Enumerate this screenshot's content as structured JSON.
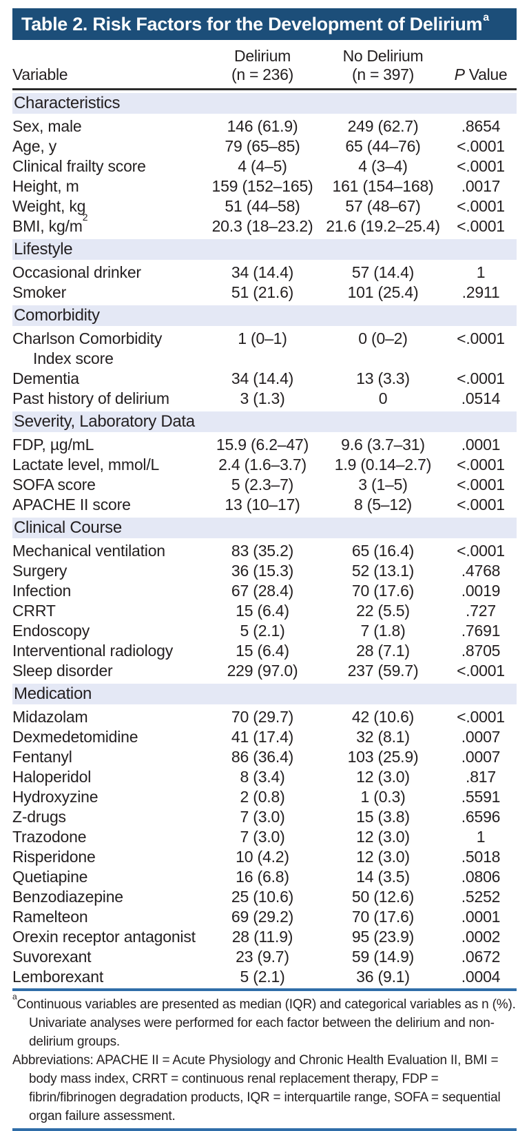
{
  "title": {
    "text": "Table 2. Risk Factors for the Development of Delirium",
    "footnote_marker": "a"
  },
  "columns": {
    "variable": "Variable",
    "delirium_line1": "Delirium",
    "delirium_line2": "(n = 236)",
    "no_delirium_line1": "No Delirium",
    "no_delirium_line2": "(n = 397)",
    "p_italic": "P",
    "p_rest": " Value"
  },
  "sections": [
    {
      "header": "Characteristics",
      "rows": [
        {
          "label": "Sex, male",
          "delirium": "146 (61.9)",
          "no_delirium": "249 (62.7)",
          "p": ".8654"
        },
        {
          "label": "Age, y",
          "delirium": "79 (65–85)",
          "no_delirium": "65 (44–76)",
          "p": "<.0001"
        },
        {
          "label": "Clinical frailty score",
          "delirium": "4 (4–5)",
          "no_delirium": "4 (3–4)",
          "p": "<.0001"
        },
        {
          "label": "Height, m",
          "delirium": "159 (152–165)",
          "no_delirium": "161 (154–168)",
          "p": ".0017"
        },
        {
          "label": "Weight, kg",
          "delirium": "51 (44–58)",
          "no_delirium": "57 (48–67)",
          "p": "<.0001"
        },
        {
          "label": "BMI, kg/m",
          "label_sup": "2",
          "delirium": "20.3 (18–23.2)",
          "no_delirium": "21.6 (19.2–25.4)",
          "p": "<.0001"
        }
      ]
    },
    {
      "header": "Lifestyle",
      "rows": [
        {
          "label": "Occasional drinker",
          "delirium": "34 (14.4)",
          "no_delirium": "57 (14.4)",
          "p": "1"
        },
        {
          "label": "Smoker",
          "delirium": "51 (21.6)",
          "no_delirium": "101 (25.4)",
          "p": ".2911"
        }
      ]
    },
    {
      "header": "Comorbidity",
      "rows": [
        {
          "label": "Charlson Comorbidity",
          "label2": "Index score",
          "delirium": "1 (0–1)",
          "no_delirium": "0 (0–2)",
          "p": "<.0001"
        },
        {
          "label": "Dementia",
          "delirium": "34 (14.4)",
          "no_delirium": "13 (3.3)",
          "p": "<.0001"
        },
        {
          "label": "Past history of delirium",
          "delirium": "3 (1.3)",
          "no_delirium": "0",
          "p": ".0514"
        }
      ]
    },
    {
      "header": "Severity, Laboratory Data",
      "rows": [
        {
          "label": "FDP, µg/mL",
          "delirium": "15.9 (6.2–47)",
          "no_delirium": "9.6 (3.7–31)",
          "p": ".0001"
        },
        {
          "label": "Lactate level, mmol/L",
          "delirium": "2.4 (1.6–3.7)",
          "no_delirium": "1.9 (0.14–2.7)",
          "p": "<.0001"
        },
        {
          "label": "SOFA score",
          "delirium": "5 (2.3–7)",
          "no_delirium": "3 (1–5)",
          "p": "<.0001"
        },
        {
          "label": "APACHE II score",
          "delirium": "13 (10–17)",
          "no_delirium": "8 (5–12)",
          "p": "<.0001"
        }
      ]
    },
    {
      "header": "Clinical Course",
      "rows": [
        {
          "label": "Mechanical ventilation",
          "delirium": "83 (35.2)",
          "no_delirium": "65 (16.4)",
          "p": "<.0001"
        },
        {
          "label": "Surgery",
          "delirium": "36 (15.3)",
          "no_delirium": "52 (13.1)",
          "p": ".4768"
        },
        {
          "label": "Infection",
          "delirium": "67 (28.4)",
          "no_delirium": "70 (17.6)",
          "p": ".0019"
        },
        {
          "label": "CRRT",
          "delirium": "15 (6.4)",
          "no_delirium": "22 (5.5)",
          "p": ".727"
        },
        {
          "label": "Endoscopy",
          "delirium": "5 (2.1)",
          "no_delirium": "7 (1.8)",
          "p": ".7691"
        },
        {
          "label": "Interventional radiology",
          "delirium": "15 (6.4)",
          "no_delirium": "28 (7.1)",
          "p": ".8705"
        },
        {
          "label": "Sleep disorder",
          "delirium": "229 (97.0)",
          "no_delirium": "237 (59.7)",
          "p": "<.0001"
        }
      ]
    },
    {
      "header": "Medication",
      "rows": [
        {
          "label": "Midazolam",
          "delirium": "70 (29.7)",
          "no_delirium": "42 (10.6)",
          "p": "<.0001"
        },
        {
          "label": "Dexmedetomidine",
          "delirium": "41 (17.4)",
          "no_delirium": "32 (8.1)",
          "p": ".0007"
        },
        {
          "label": "Fentanyl",
          "delirium": "86 (36.4)",
          "no_delirium": "103 (25.9)",
          "p": ".0007"
        },
        {
          "label": "Haloperidol",
          "delirium": "8 (3.4)",
          "no_delirium": "12 (3.0)",
          "p": ".817"
        },
        {
          "label": "Hydroxyzine",
          "delirium": "2 (0.8)",
          "no_delirium": "1 (0.3)",
          "p": ".5591"
        },
        {
          "label": "Z-drugs",
          "delirium": "7 (3.0)",
          "no_delirium": "15 (3.8)",
          "p": ".6596"
        },
        {
          "label": "Trazodone",
          "delirium": "7 (3.0)",
          "no_delirium": "12 (3.0)",
          "p": "1"
        },
        {
          "label": "Risperidone",
          "delirium": "10 (4.2)",
          "no_delirium": "12 (3.0)",
          "p": ".5018"
        },
        {
          "label": "Quetiapine",
          "delirium": "16 (6.8)",
          "no_delirium": "14 (3.5)",
          "p": ".0806"
        },
        {
          "label": "Benzodiazepine",
          "delirium": "25 (10.6)",
          "no_delirium": "50 (12.6)",
          "p": ".5252"
        },
        {
          "label": "Ramelteon",
          "delirium": "69 (29.2)",
          "no_delirium": "70 (17.6)",
          "p": ".0001"
        },
        {
          "label": "Orexin receptor antagonist",
          "delirium": "28 (11.9)",
          "no_delirium": "95 (23.9)",
          "p": ".0002"
        },
        {
          "label": "Suvorexant",
          "delirium": "23 (9.7)",
          "no_delirium": "59 (14.9)",
          "p": ".0672"
        },
        {
          "label": "Lemborexant",
          "delirium": "5 (2.1)",
          "no_delirium": "36 (9.1)",
          "p": ".0004"
        }
      ]
    }
  ],
  "footnotes": {
    "marker": "a",
    "note": "Continuous variables are presented as median (IQR) and categorical variables as n (%). Univariate analyses were performed for each factor between the delirium and non-delirium groups.",
    "abbreviations": "Abbreviations: APACHE II = Acute Physiology and Chronic Health Evaluation II, BMI = body mass index, CRRT = continuous renal replacement therapy, FDP = fibrin/fibrinogen degradation products, IQR = interquartile range, SOFA = sequential organ failure assessment."
  },
  "colors": {
    "navy": "#1c4e79",
    "section_band": "#e4e8f5",
    "rule_dark": "#2b2b2b",
    "rule_blue": "#2f6da8",
    "text": "#231f20",
    "title_text": "#ffffff",
    "background": "#ffffff"
  }
}
